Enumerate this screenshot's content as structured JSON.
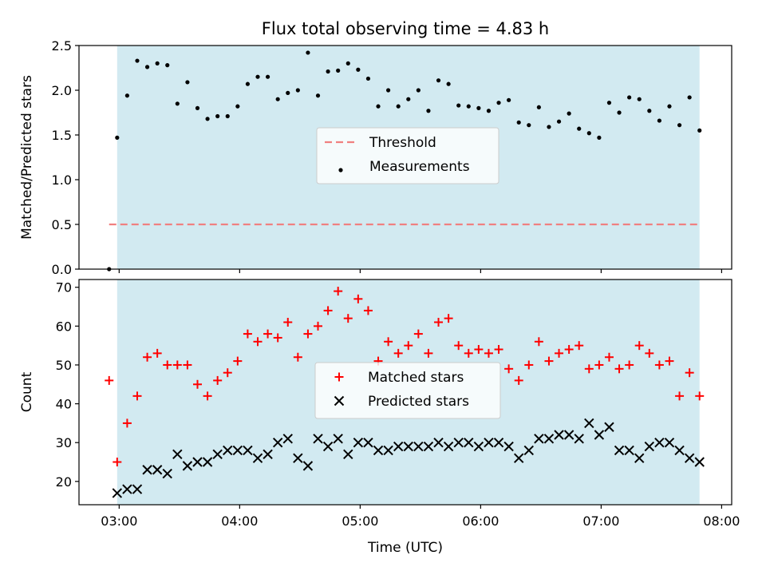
{
  "chart_data": [
    {
      "type": "scatter",
      "title": "Flux total observing time = 4.83 h",
      "ylabel": "Matched/Predicted stars",
      "xlabel": "",
      "xlim": [
        "02:40",
        "08:05"
      ],
      "ylim": [
        0,
        2.5
      ],
      "yticks": [
        "0.0",
        "0.5",
        "1.0",
        "1.5",
        "2.0",
        "2.5"
      ],
      "shaded_span": {
        "from": "02:59",
        "to": "07:49",
        "color": "#add8e6"
      },
      "legend_position": "center",
      "threshold": {
        "name": "Threshold",
        "value": 0.5,
        "from": "02:55",
        "to": "07:49",
        "color": "#f08080"
      },
      "series": [
        {
          "name": "Measurements",
          "color": "#000000",
          "marker": "dot",
          "x": [
            "02:55",
            "02:59",
            "03:04",
            "03:09",
            "03:14",
            "03:19",
            "03:24",
            "03:29",
            "03:34",
            "03:39",
            "03:44",
            "03:49",
            "03:54",
            "03:59",
            "04:04",
            "04:09",
            "04:14",
            "04:19",
            "04:24",
            "04:29",
            "04:34",
            "04:39",
            "04:44",
            "04:49",
            "04:54",
            "04:59",
            "05:04",
            "05:09",
            "05:14",
            "05:19",
            "05:24",
            "05:29",
            "05:34",
            "05:39",
            "05:44",
            "05:49",
            "05:54",
            "05:59",
            "06:04",
            "06:09",
            "06:14",
            "06:19",
            "06:24",
            "06:29",
            "06:34",
            "06:39",
            "06:44",
            "06:49",
            "06:54",
            "06:59",
            "07:04",
            "07:09",
            "07:14",
            "07:19",
            "07:24",
            "07:29",
            "07:34",
            "07:39",
            "07:44",
            "07:49"
          ],
          "y": [
            0.0,
            1.47,
            1.94,
            2.33,
            2.26,
            2.3,
            2.28,
            1.85,
            2.09,
            1.8,
            1.68,
            1.71,
            1.71,
            1.82,
            2.07,
            2.15,
            2.15,
            1.9,
            1.97,
            2.0,
            2.42,
            1.94,
            2.21,
            2.22,
            2.3,
            2.23,
            2.13,
            1.82,
            2.0,
            1.82,
            1.9,
            2.0,
            1.77,
            2.11,
            2.07,
            1.83,
            1.82,
            1.8,
            1.77,
            1.86,
            1.89,
            1.64,
            1.61,
            1.81,
            1.59,
            1.65,
            1.74,
            1.57,
            1.52,
            1.47,
            1.86,
            1.75,
            1.92,
            1.9,
            1.77,
            1.66,
            1.82,
            1.61,
            1.92,
            1.55
          ]
        }
      ]
    },
    {
      "type": "scatter",
      "title": "",
      "ylabel": "Count",
      "xlabel": "Time (UTC)",
      "xlim": [
        "02:40",
        "08:05"
      ],
      "ylim": [
        14,
        72
      ],
      "yticks": [
        "20",
        "30",
        "40",
        "50",
        "60",
        "70"
      ],
      "xticks": [
        "03:00",
        "04:00",
        "05:00",
        "06:00",
        "07:00",
        "08:00"
      ],
      "shaded_span": {
        "from": "02:59",
        "to": "07:49",
        "color": "#add8e6"
      },
      "legend_position": "center",
      "series": [
        {
          "name": "Matched stars",
          "color": "#ff0000",
          "marker": "plus",
          "x": [
            "02:55",
            "02:59",
            "03:04",
            "03:09",
            "03:14",
            "03:19",
            "03:24",
            "03:29",
            "03:34",
            "03:39",
            "03:44",
            "03:49",
            "03:54",
            "03:59",
            "04:04",
            "04:09",
            "04:14",
            "04:19",
            "04:24",
            "04:29",
            "04:34",
            "04:39",
            "04:44",
            "04:49",
            "04:54",
            "04:59",
            "05:04",
            "05:09",
            "05:14",
            "05:19",
            "05:24",
            "05:29",
            "05:34",
            "05:39",
            "05:44",
            "05:49",
            "05:54",
            "05:59",
            "06:04",
            "06:09",
            "06:14",
            "06:19",
            "06:24",
            "06:29",
            "06:34",
            "06:39",
            "06:44",
            "06:49",
            "06:54",
            "06:59",
            "07:04",
            "07:09",
            "07:14",
            "07:19",
            "07:24",
            "07:29",
            "07:34",
            "07:39",
            "07:44",
            "07:49"
          ],
          "y": [
            46,
            25,
            35,
            42,
            52,
            53,
            50,
            50,
            50,
            45,
            42,
            46,
            48,
            51,
            58,
            56,
            58,
            57,
            61,
            52,
            58,
            60,
            64,
            69,
            62,
            67,
            64,
            51,
            56,
            53,
            55,
            58,
            53,
            61,
            62,
            55,
            53,
            54,
            53,
            54,
            49,
            46,
            50,
            56,
            51,
            53,
            54,
            55,
            49,
            50,
            52,
            49,
            50,
            55,
            53,
            50,
            51,
            42,
            48,
            42
          ]
        },
        {
          "name": "Predicted stars",
          "color": "#000000",
          "marker": "x",
          "x": [
            "02:59",
            "03:04",
            "03:09",
            "03:14",
            "03:19",
            "03:24",
            "03:29",
            "03:34",
            "03:39",
            "03:44",
            "03:49",
            "03:54",
            "03:59",
            "04:04",
            "04:09",
            "04:14",
            "04:19",
            "04:24",
            "04:29",
            "04:34",
            "04:39",
            "04:44",
            "04:49",
            "04:54",
            "04:59",
            "05:04",
            "05:09",
            "05:14",
            "05:19",
            "05:24",
            "05:29",
            "05:34",
            "05:39",
            "05:44",
            "05:49",
            "05:54",
            "05:59",
            "06:04",
            "06:09",
            "06:14",
            "06:19",
            "06:24",
            "06:29",
            "06:34",
            "06:39",
            "06:44",
            "06:49",
            "06:54",
            "06:59",
            "07:04",
            "07:09",
            "07:14",
            "07:19",
            "07:24",
            "07:29",
            "07:34",
            "07:39",
            "07:44",
            "07:49"
          ],
          "y": [
            17,
            18,
            18,
            23,
            23,
            22,
            27,
            24,
            25,
            25,
            27,
            28,
            28,
            28,
            26,
            27,
            30,
            31,
            26,
            24,
            31,
            29,
            31,
            27,
            30,
            30,
            28,
            28,
            29,
            29,
            29,
            29,
            30,
            29,
            30,
            30,
            29,
            30,
            30,
            29,
            26,
            28,
            31,
            31,
            32,
            32,
            31,
            35,
            32,
            34,
            28,
            28,
            26,
            29,
            30,
            30,
            28,
            26,
            25
          ]
        }
      ]
    }
  ]
}
